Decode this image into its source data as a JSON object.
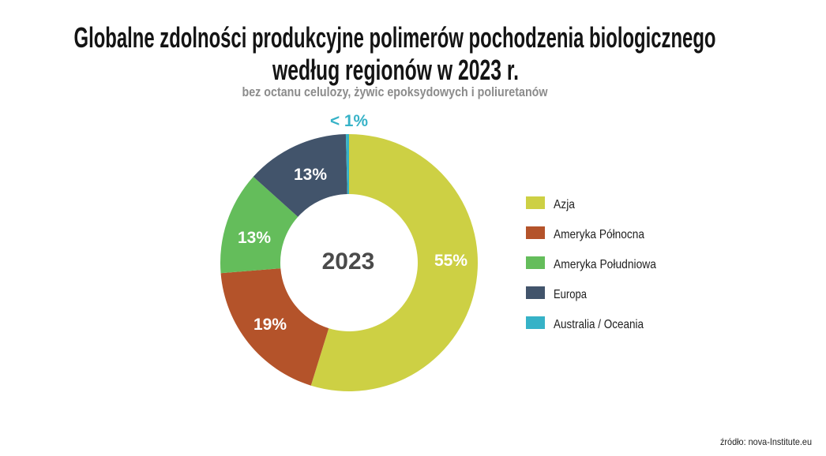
{
  "chart_data": {
    "type": "pie",
    "donut": true,
    "title": [
      "Globalne zdolności produkcyjne polimerów pochodzenia biologicznego",
      "według regionów w 2023 r."
    ],
    "subtitle": "bez octanu celulozy, żywic epoksydowych i poliuretanów",
    "center_label": "2023",
    "categories": [
      "Azja",
      "Ameryka Północna",
      "Ameryka Południowa",
      "Europa",
      "Australia / Oceania"
    ],
    "values": [
      55,
      19,
      13,
      13,
      0.4
    ],
    "value_labels": [
      "55%",
      "19%",
      "13%",
      "13%",
      "< 1%"
    ],
    "colors": [
      "#cdd044",
      "#b4532a",
      "#64bd5b",
      "#42546b",
      "#36b2c7"
    ],
    "legend_position": "right"
  },
  "source": "źródło: nova-Institute.eu"
}
